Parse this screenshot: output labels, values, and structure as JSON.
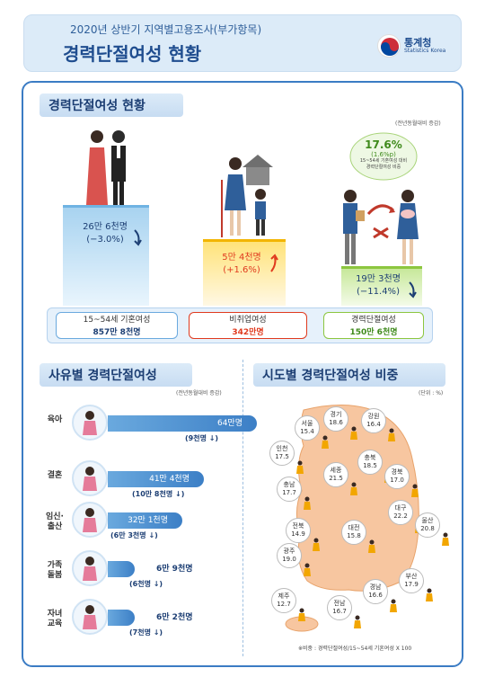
{
  "header": {
    "subtitle": "2020년 상반기 지역별고용조사(부가항목)",
    "title": "경력단절여성 현황",
    "logo_name": "통계청",
    "logo_en": "Statistics Korea"
  },
  "section1": {
    "title": "경력단절여성 현황",
    "note": "(전년동월대비 증감)",
    "married": {
      "value": "26만 6천명",
      "change": "(−3.0%)"
    },
    "nonemployed": {
      "value": "5만 4천명",
      "change": "(+1.6%)"
    },
    "career_break": {
      "value": "19만 3천명",
      "change": "(−11.4%)"
    },
    "ratio_bubble": {
      "value": "17.6%",
      "change": "(1.6%p)",
      "desc_line1": "15~54세 기혼여성 대비",
      "desc_line2": "경력단절여성 비중"
    },
    "summary": [
      {
        "label": "15~54세 기혼여성",
        "value": "857만 8천명"
      },
      {
        "label": "비취업여성",
        "value": "342만명"
      },
      {
        "label": "경력단절여성",
        "value": "150만 6천명"
      }
    ]
  },
  "section2": {
    "title": "사유별 경력단절여성",
    "note": "(전년동월대비 증감)",
    "reasons": [
      {
        "label": "육아",
        "value": "64만명",
        "change": "(9천명 ↓)",
        "share": 1.0
      },
      {
        "label": "결혼",
        "value": "41만 4천명",
        "change": "(10만 8천명 ↓)",
        "share": 0.647
      },
      {
        "label_line1": "임신·",
        "label_line2": "출산",
        "value": "32만 1천명",
        "change": "(6만 3천명 ↓)",
        "share": 0.502
      },
      {
        "label_line1": "가족",
        "label_line2": "돌봄",
        "value": "6만 9천명",
        "change": "(6천명 ↓)",
        "share": 0.108
      },
      {
        "label_line1": "자녀",
        "label_line2": "교육",
        "value": "6만 2천명",
        "change": "(7천명 ↓)",
        "share": 0.097
      }
    ]
  },
  "section3": {
    "title": "시도별 경력단절여성 비중",
    "unit": "(단위 : %)",
    "footnote": "※비중 : 경력단절여성/15~54세 기혼여성 X 100",
    "regions": [
      {
        "name": "서울",
        "value": "15.4"
      },
      {
        "name": "경기",
        "value": "18.6"
      },
      {
        "name": "강원",
        "value": "16.4"
      },
      {
        "name": "인천",
        "value": "17.5"
      },
      {
        "name": "충북",
        "value": "18.5"
      },
      {
        "name": "세종",
        "value": "21.5"
      },
      {
        "name": "경북",
        "value": "17.0"
      },
      {
        "name": "충남",
        "value": "17.7"
      },
      {
        "name": "대구",
        "value": "22.2"
      },
      {
        "name": "전북",
        "value": "14.9"
      },
      {
        "name": "대전",
        "value": "15.8"
      },
      {
        "name": "울산",
        "value": "20.8"
      },
      {
        "name": "광주",
        "value": "19.0"
      },
      {
        "name": "부산",
        "value": "17.9"
      },
      {
        "name": "경남",
        "value": "16.6"
      },
      {
        "name": "제주",
        "value": "12.7"
      },
      {
        "name": "전남",
        "value": "16.7"
      }
    ]
  },
  "colors": {
    "primary": "#1f4d8f",
    "frame": "#3b7cc4",
    "increase": "#e03a1e",
    "decrease": "#1c3e73",
    "green": "#3f8a1c"
  }
}
